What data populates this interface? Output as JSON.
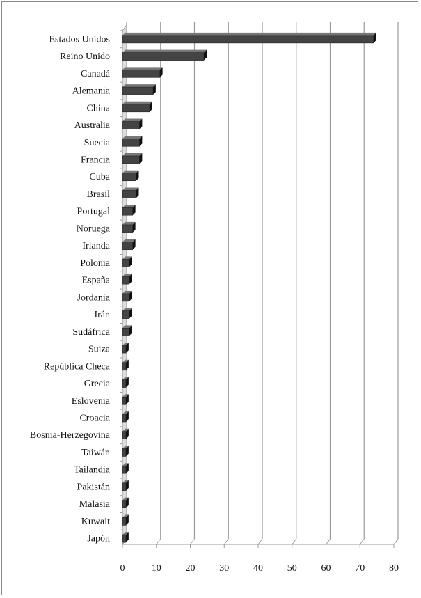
{
  "chart_data": {
    "type": "bar",
    "orientation": "horizontal",
    "style": "3d",
    "categories": [
      "Estados Unidos",
      "Reino Unido",
      "Canadá",
      "Alemania",
      "China",
      "Australia",
      "Suecia",
      "Francia",
      "Cuba",
      "Brasil",
      "Portugal",
      "Noruega",
      "Irlanda",
      "Polonia",
      "España",
      "Jordania",
      "Irán",
      "Sudáfrica",
      "Suiza",
      "República Checa",
      "Grecia",
      "Eslovenia",
      "Croacia",
      "Bosnia-Herzegovina",
      "Taiwán",
      "Tailandia",
      "Pakistán",
      "Malasia",
      "Kuwait",
      "Japón"
    ],
    "values": [
      74,
      24,
      11,
      9,
      8,
      5,
      5,
      5,
      4,
      4,
      3,
      3,
      3,
      2,
      2,
      2,
      2,
      2,
      1,
      1,
      1,
      1,
      1,
      1,
      1,
      1,
      1,
      1,
      1,
      1
    ],
    "xlim": [
      0,
      80
    ],
    "xticks": [
      "0",
      "10",
      "20",
      "30",
      "40",
      "50",
      "60",
      "70",
      "80"
    ],
    "grid": true,
    "bar_color": "#444444",
    "title": "",
    "xlabel": "",
    "ylabel": ""
  }
}
